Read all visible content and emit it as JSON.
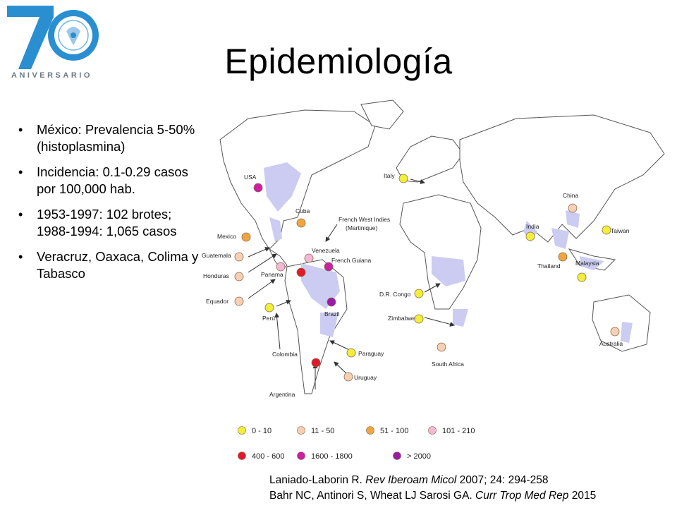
{
  "logo": {
    "number": "70",
    "word": "ANIVERSARIO",
    "colors": {
      "primary": "#2a8fd0",
      "light": "#6cb6e6"
    }
  },
  "title": "Epidemiología",
  "bullets": [
    "México: Prevalencia 5-50% (histoplasmina)",
    "Incidencia: 0.1-0.29 casos por 100,000 hab.",
    "1953-1997: 102 brotes; 1988-1994: 1,065 casos",
    "Veracruz, Oaxaca, Colima y Tabasco"
  ],
  "map": {
    "colors": {
      "land_fill": "#ffffff",
      "border": "#555555",
      "endemic": "#ccccf2"
    },
    "labels": {
      "usa": "USA",
      "cuba": "Cuba",
      "mexico": "Mexico",
      "guatemala": "Guatemala",
      "honduras": "Honduras",
      "panama": "Panama",
      "equador": "Equador",
      "peru": "Perú",
      "colombia": "Colombia",
      "argentina": "Argentina",
      "uruguay": "Uruguay",
      "paraguay": "Paraguay",
      "brazil": "Brazil",
      "venezuela": "Venezuela",
      "french_guiana": "French Guiana",
      "fwi1": "French West Indies",
      "fwi2": "(Martinique)",
      "italy": "Italy",
      "dr_congo": "D.R. Congo",
      "zimbabwe": "Zimbabwe",
      "south_africa": "South Africa",
      "india": "India",
      "china": "China",
      "taiwan": "Taiwan",
      "thailand": "Thailand",
      "malaysia": "Malaysia",
      "australia": "Australia"
    },
    "markers": {
      "usa": "1600-1800",
      "cuba": "51-100",
      "mexico": "51-100",
      "guatemala": "11-50",
      "honduras": "11-50",
      "panama": "101-210",
      "equador": "11-50",
      "peru": "0-10",
      "colombia": "400-600",
      "venezuela": "101-210",
      "french_guiana": "1600-1800",
      "brazil": ">2000",
      "paraguay": "0-10",
      "uruguay": "11-50",
      "argentina": "400-600",
      "italy": "0-10",
      "dr_congo": "0-10",
      "zimbabwe": "0-10",
      "south_africa": "11-50",
      "india": "0-10",
      "china": "11-50",
      "taiwan": "0-10",
      "thailand": "51-100",
      "malaysia": "0-10",
      "australia": "11-50"
    }
  },
  "legend": [
    {
      "label": "0 - 10",
      "color": "#f2ee3a"
    },
    {
      "label": "11 - 50",
      "color": "#f6cfb4"
    },
    {
      "label": "51 - 100",
      "color": "#efa640"
    },
    {
      "label": "101 - 210",
      "color": "#f4b8d6"
    },
    {
      "label": "400 - 600",
      "color": "#e01a2a"
    },
    {
      "label": "1600 - 1800",
      "color": "#cc1ea6"
    },
    {
      "label": "> 2000",
      "color": "#9a1ca6"
    }
  ],
  "references": [
    {
      "authors": "Laniado-Laborin R. ",
      "journal": "Rev Iberoam Micol",
      "rest": " 2007; 24: 294-258"
    },
    {
      "authors": "Bahr NC, Antinori S, Wheat LJ Sarosi GA. ",
      "journal": "Curr Trop Med Rep",
      "rest": " 2015"
    }
  ]
}
